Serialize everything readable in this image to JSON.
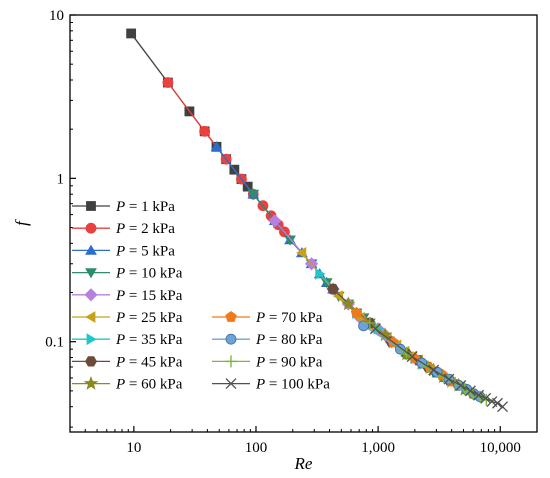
{
  "chart_data": {
    "type": "line",
    "xlabel": "Re",
    "ylabel": "f",
    "xscale": "log",
    "yscale": "log",
    "xlim": [
      3,
      20000
    ],
    "ylim": [
      0.028,
      10
    ],
    "xticks": [
      10,
      100,
      1000,
      10000
    ],
    "xtick_labels": [
      "10",
      "100",
      "1,000",
      "10,000"
    ],
    "yticks": [
      0.1,
      1,
      10
    ],
    "ytick_labels": [
      "0.1",
      "1",
      "10"
    ],
    "grid": false,
    "legend_position": "bottom-left",
    "series": [
      {
        "name": "P = 1 kPa",
        "marker": "square",
        "color": "#404040",
        "x": [
          9.5,
          19,
          28.5,
          38,
          47.5,
          57,
          66.5,
          76,
          85.5
        ],
        "y": [
          7.71,
          3.86,
          2.57,
          1.94,
          1.56,
          1.31,
          1.13,
          0.99,
          0.89
        ]
      },
      {
        "name": "P = 2 kPa",
        "marker": "circle",
        "color": "#e8413e",
        "x": [
          19,
          38,
          57,
          76,
          95,
          114,
          133,
          152,
          171
        ],
        "y": [
          3.86,
          1.94,
          1.31,
          0.99,
          0.8,
          0.68,
          0.59,
          0.52,
          0.47
        ]
      },
      {
        "name": "P = 5 kPa",
        "marker": "triangle-up",
        "color": "#2a6fcf",
        "x": [
          47.5,
          95,
          142.5,
          190,
          237.5,
          285,
          332.5,
          380,
          427.5
        ],
        "y": [
          1.56,
          0.8,
          0.55,
          0.42,
          0.35,
          0.3,
          0.26,
          0.23,
          0.21
        ]
      },
      {
        "name": "P = 10 kPa",
        "marker": "triangle-down",
        "color": "#2e8b6e",
        "x": [
          95,
          190,
          285,
          380,
          475,
          570,
          665,
          760,
          855
        ],
        "y": [
          0.8,
          0.42,
          0.3,
          0.23,
          0.19,
          0.17,
          0.15,
          0.14,
          0.13
        ]
      },
      {
        "name": "P = 15 kPa",
        "marker": "diamond",
        "color": "#b77fe0",
        "x": [
          142.5,
          285,
          427.5,
          570,
          712.5,
          855,
          997.5,
          1140,
          1282.5
        ],
        "y": [
          0.55,
          0.3,
          0.21,
          0.17,
          0.14,
          0.13,
          0.12,
          0.11,
          0.1
        ]
      },
      {
        "name": "P = 25 kPa",
        "marker": "triangle-left",
        "color": "#c9a01a",
        "x": [
          237.5,
          475,
          712.5,
          950,
          1187.5,
          1425,
          1662.5,
          1900,
          2137.5
        ],
        "y": [
          0.35,
          0.19,
          0.14,
          0.12,
          0.105,
          0.095,
          0.087,
          0.081,
          0.077
        ]
      },
      {
        "name": "P = 35 kPa",
        "marker": "triangle-right",
        "color": "#23c6c8",
        "x": [
          332.5,
          665,
          997.5,
          1330,
          1662.5,
          1995,
          2327.5,
          2660,
          2992.5
        ],
        "y": [
          0.26,
          0.15,
          0.12,
          0.099,
          0.087,
          0.079,
          0.073,
          0.069,
          0.065
        ]
      },
      {
        "name": "P = 45 kPa",
        "marker": "hexagon",
        "color": "#6e4a3a",
        "x": [
          427.5,
          855,
          1282.5,
          1710,
          2137.5,
          2565,
          2992.5,
          3420,
          3847.5
        ],
        "y": [
          0.21,
          0.13,
          0.1,
          0.084,
          0.077,
          0.07,
          0.065,
          0.061,
          0.058
        ]
      },
      {
        "name": "P = 60 kPa",
        "marker": "star",
        "color": "#8b8a1e",
        "x": [
          570,
          1140,
          1710,
          2280,
          2850,
          3420,
          3990,
          4560,
          5130
        ],
        "y": [
          0.17,
          0.11,
          0.084,
          0.074,
          0.067,
          0.061,
          0.057,
          0.054,
          0.051
        ]
      },
      {
        "name": "P = 70 kPa",
        "marker": "pentagon",
        "color": "#f07a1a",
        "x": [
          665,
          1330,
          1995,
          2660,
          3325,
          3990,
          4655,
          5320,
          5985
        ],
        "y": [
          0.15,
          0.099,
          0.079,
          0.069,
          0.063,
          0.057,
          0.054,
          0.051,
          0.048
        ]
      },
      {
        "name": "P = 80 kPa",
        "marker": "sphere",
        "color": "#6fa3d8",
        "x": [
          760,
          1520,
          2280,
          3040,
          3800,
          4560,
          5320,
          6080,
          6840
        ],
        "y": [
          0.125,
          0.09,
          0.074,
          0.065,
          0.059,
          0.054,
          0.051,
          0.048,
          0.046
        ]
      },
      {
        "name": "P = 90 kPa",
        "marker": "plus",
        "color": "#7ab83a",
        "x": [
          855,
          1710,
          2565,
          3420,
          4275,
          5130,
          5985,
          6840,
          7695
        ],
        "y": [
          0.13,
          0.084,
          0.07,
          0.061,
          0.056,
          0.051,
          0.048,
          0.046,
          0.044
        ]
      },
      {
        "name": "P = 100 kPa",
        "marker": "x",
        "color": "#505050",
        "x": [
          950,
          1900,
          2850,
          3800,
          4750,
          5700,
          6650,
          7600,
          8550,
          9500,
          10450
        ],
        "y": [
          0.12,
          0.081,
          0.067,
          0.059,
          0.054,
          0.05,
          0.047,
          0.045,
          0.043,
          0.042,
          0.04
        ]
      }
    ]
  }
}
